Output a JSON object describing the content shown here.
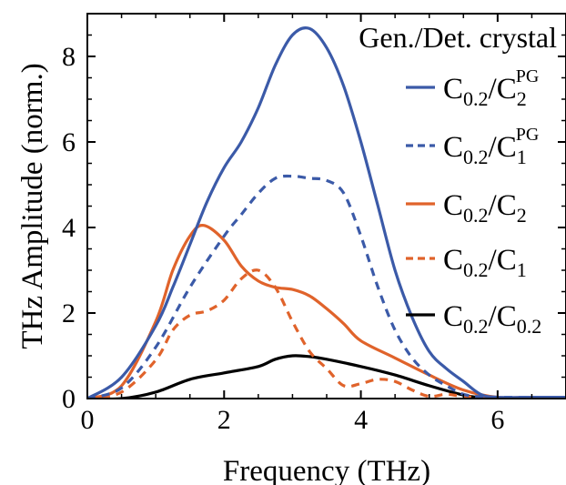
{
  "chart_data": {
    "type": "line",
    "title": "",
    "xlabel": "Frequency (THz)",
    "ylabel": "THz Amplitude (norm.)",
    "xlim": [
      0,
      7
    ],
    "ylim": [
      0,
      9
    ],
    "x_ticks": [
      "0",
      "2",
      "4",
      "6"
    ],
    "y_ticks": [
      "0",
      "2",
      "4",
      "6",
      "8"
    ],
    "grid": false,
    "legend": {
      "title": "Gen./Det. crystal",
      "placement": "top-right"
    },
    "colors": {
      "blue": "#3b5aa8",
      "orange": "#e0632b",
      "black": "#000000"
    },
    "series": [
      {
        "name": "C0.2/C2PG",
        "label": {
          "base": "C",
          "base_sub": "0.2",
          "sep": "/",
          "tail": "C",
          "tail_sub": "2",
          "tail_sup": "PG"
        },
        "color": "blue",
        "dash": "solid",
        "x": [
          0,
          0.5,
          1.0,
          1.25,
          1.5,
          1.75,
          2.0,
          2.25,
          2.5,
          2.75,
          3.0,
          3.25,
          3.5,
          3.75,
          4.0,
          4.25,
          4.5,
          4.75,
          5.0,
          5.25,
          5.5,
          5.75,
          6.0,
          6.5,
          7.0
        ],
        "y": [
          0,
          0.5,
          1.7,
          2.6,
          3.6,
          4.6,
          5.4,
          6.0,
          6.8,
          7.8,
          8.5,
          8.65,
          8.2,
          7.3,
          6.0,
          4.5,
          3.0,
          1.9,
          1.1,
          0.7,
          0.4,
          0.1,
          0.03,
          0.03,
          0.03
        ]
      },
      {
        "name": "C0.2/C1PG",
        "label": {
          "base": "C",
          "base_sub": "0.2",
          "sep": "/",
          "tail": "C",
          "tail_sub": "1",
          "tail_sup": "PG"
        },
        "color": "blue",
        "dash": "dashed",
        "x": [
          0,
          0.5,
          1.0,
          1.5,
          2.0,
          2.25,
          2.5,
          2.75,
          3.0,
          3.25,
          3.5,
          3.75,
          4.0,
          4.25,
          4.5,
          4.75,
          5.0,
          5.25,
          5.5,
          5.75,
          6.0,
          6.5,
          7.0
        ],
        "y": [
          0,
          0.25,
          1.2,
          2.6,
          3.8,
          4.3,
          4.8,
          5.15,
          5.2,
          5.15,
          5.1,
          4.8,
          3.8,
          2.6,
          1.6,
          0.95,
          0.55,
          0.3,
          0.1,
          0.04,
          0.03,
          0.03,
          0.03
        ]
      },
      {
        "name": "C0.2/C2",
        "label": {
          "base": "C",
          "base_sub": "0.2",
          "sep": "/",
          "tail": "C",
          "tail_sub": "2",
          "tail_sup": ""
        },
        "color": "orange",
        "dash": "solid",
        "x": [
          0,
          0.5,
          1.0,
          1.25,
          1.5,
          1.7,
          2.0,
          2.25,
          2.5,
          2.75,
          3.0,
          3.25,
          3.5,
          3.75,
          4.0,
          4.5,
          5.0,
          5.5,
          6.0,
          6.5,
          7.0
        ],
        "y": [
          0,
          0.3,
          1.8,
          3.0,
          3.8,
          4.05,
          3.7,
          3.1,
          2.75,
          2.6,
          2.55,
          2.4,
          2.1,
          1.75,
          1.35,
          0.95,
          0.55,
          0.2,
          0.03,
          0.03,
          0.03
        ]
      },
      {
        "name": "C0.2/C1",
        "label": {
          "base": "C",
          "base_sub": "0.2",
          "sep": "/",
          "tail": "C",
          "tail_sub": "1",
          "tail_sup": ""
        },
        "color": "orange",
        "dash": "dashed",
        "x": [
          0,
          0.5,
          1.0,
          1.25,
          1.5,
          1.75,
          2.0,
          2.25,
          2.5,
          2.75,
          3.0,
          3.25,
          3.5,
          3.75,
          4.0,
          4.25,
          4.5,
          4.75,
          5.0,
          5.25,
          5.5,
          6.0,
          7.0
        ],
        "y": [
          0,
          0.15,
          0.9,
          1.6,
          1.95,
          2.05,
          2.3,
          2.8,
          3.0,
          2.6,
          1.8,
          1.1,
          0.7,
          0.3,
          0.35,
          0.45,
          0.4,
          0.2,
          0.05,
          0.1,
          0.05,
          0.0,
          0.0
        ]
      },
      {
        "name": "C0.2/C0.2",
        "label": {
          "base": "C",
          "base_sub": "0.2",
          "sep": "/",
          "tail": "C",
          "tail_sub": "0.2",
          "tail_sup": ""
        },
        "color": "black",
        "dash": "solid",
        "x": [
          0,
          0.5,
          1.0,
          1.5,
          2.0,
          2.5,
          2.75,
          3.0,
          3.25,
          3.5,
          4.0,
          4.5,
          5.0,
          5.5,
          5.75,
          6.0,
          7.0
        ],
        "y": [
          0,
          0.0,
          0.15,
          0.45,
          0.6,
          0.75,
          0.92,
          1.0,
          0.98,
          0.92,
          0.75,
          0.55,
          0.3,
          0.08,
          0.02,
          0.0,
          0.0
        ]
      }
    ]
  }
}
